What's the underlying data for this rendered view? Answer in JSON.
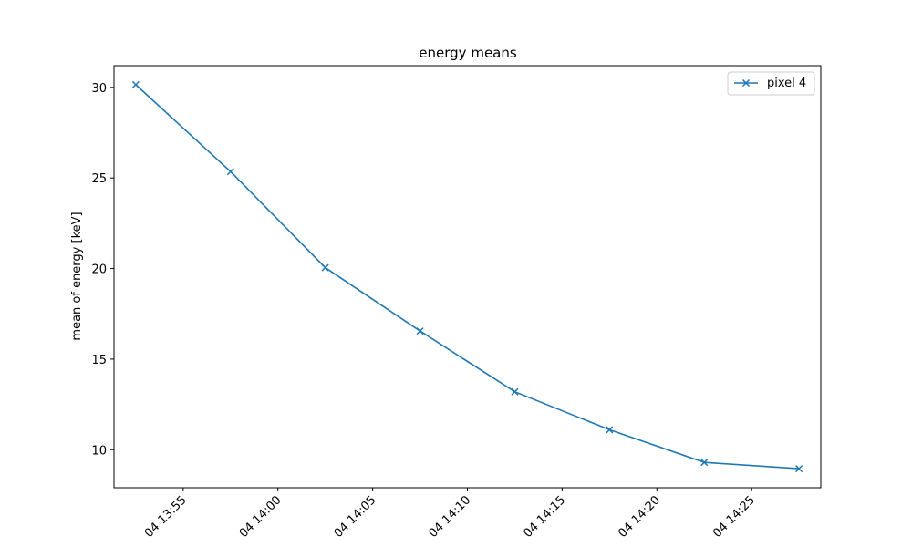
{
  "chart_data": {
    "type": "line",
    "title": "energy means",
    "xlabel": "",
    "ylabel": "mean of energy [keV]",
    "x": [
      "13:52:30",
      "13:57:30",
      "14:02:30",
      "14:07:30",
      "14:12:30",
      "14:17:30",
      "14:22:30",
      "14:27:30"
    ],
    "x_ticks": [
      "13:55",
      "14:00",
      "14:05",
      "14:10",
      "14:15",
      "14:20",
      "14:25"
    ],
    "x_tick_labels": [
      "04 13:55",
      "04 14:00",
      "04 14:05",
      "04 14:10",
      "04 14:15",
      "04 14:20",
      "04 14:25"
    ],
    "xlim": [
      "13:51:21",
      "14:28:39"
    ],
    "y_ticks": [
      10,
      15,
      20,
      25,
      30
    ],
    "ylim": [
      7.9,
      31.2
    ],
    "grid": false,
    "legend_position": "upper right",
    "series": [
      {
        "name": "pixel 4",
        "color": "#1f77b4",
        "marker": "x",
        "values": [
          30.15,
          25.35,
          20.05,
          16.55,
          13.2,
          11.1,
          9.3,
          8.95
        ]
      }
    ]
  }
}
